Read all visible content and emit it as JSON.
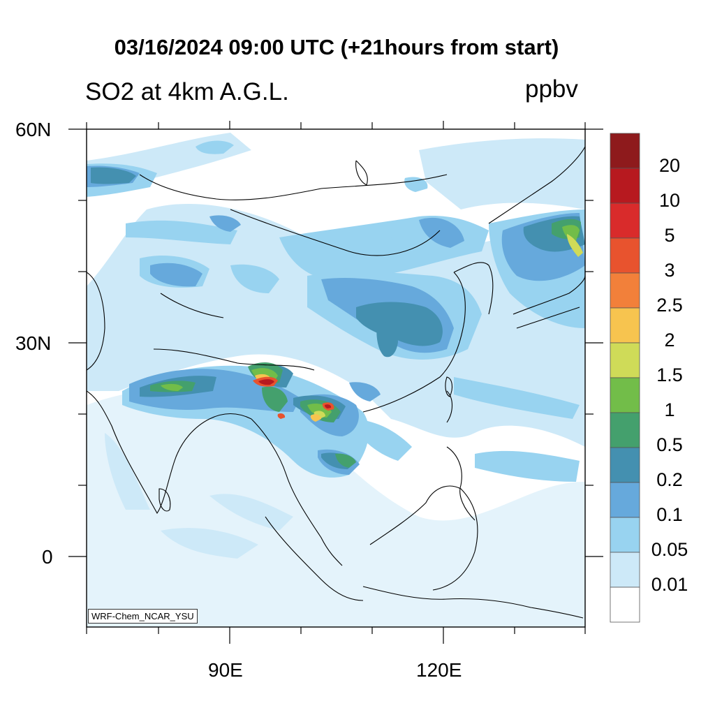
{
  "title": "03/16/2024 09:00 UTC (+21hours from start)",
  "subtitle": "SO2 at 4km A.G.L.",
  "units": "ppbv",
  "model_tag": "WRF-Chem_NCAR_YSU",
  "map": {
    "lon_range": [
      70,
      141
    ],
    "lat_range": [
      -10,
      60
    ],
    "lat_labels": [
      "60N",
      "30N",
      "0"
    ],
    "lon_labels": [
      "90E",
      "120E"
    ]
  },
  "colorbar": {
    "levels": [
      "20",
      "10",
      "5",
      "3",
      "2.5",
      "2",
      "1.5",
      "1",
      "0.5",
      "0.2",
      "0.1",
      "0.05",
      "0.01"
    ],
    "colors": [
      "#8e1a1c",
      "#b7191f",
      "#d92b2b",
      "#e8532e",
      "#f2803a",
      "#f7c44f",
      "#cfdb58",
      "#72bd49",
      "#44a06d",
      "#4490b0",
      "#66a9dc",
      "#98d3f0",
      "#cde9f8",
      "#ffffff"
    ]
  }
}
